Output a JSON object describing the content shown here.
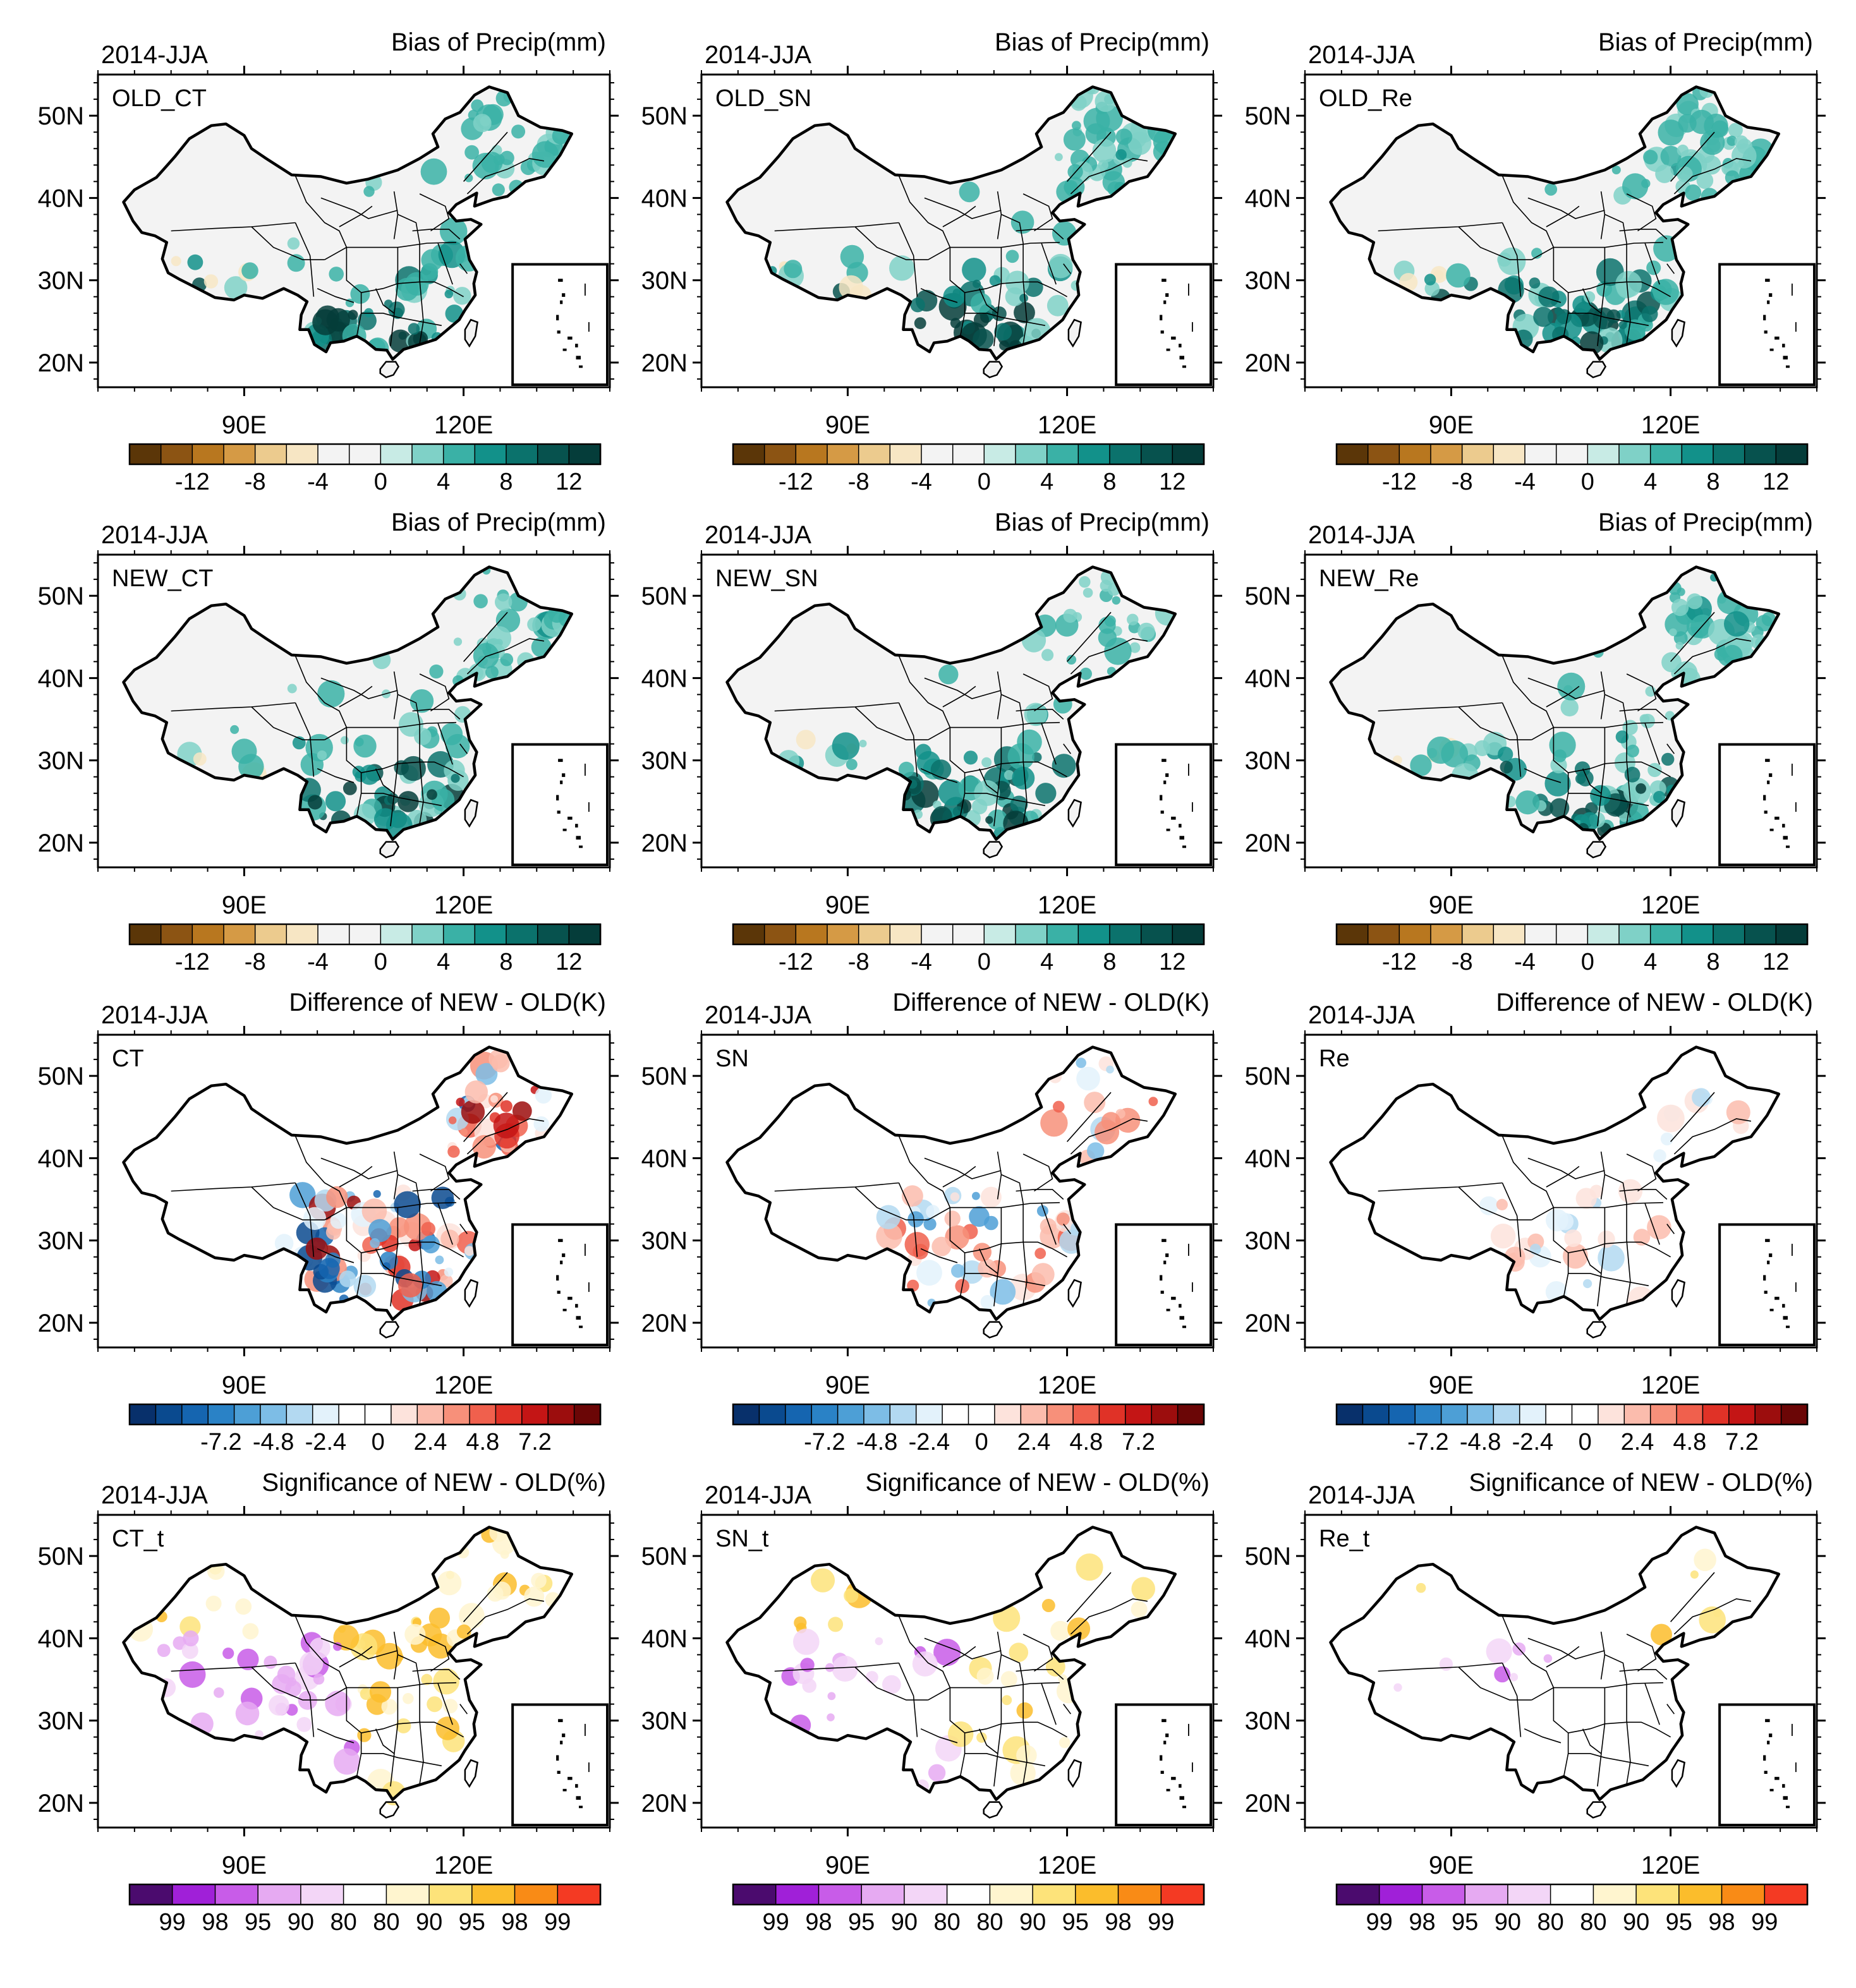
{
  "figure": {
    "rows": [
      {
        "id": "old-bias",
        "season": "2014-JJA",
        "title": "Bias of Precip(mm)",
        "palette": [
          "#5b3608",
          "#8c5413",
          "#b8771f",
          "#d59a45",
          "#eccb8e",
          "#f7e6c4",
          "#f3f3f3",
          "#f3f3f3",
          "#c8ebe5",
          "#7fd1c7",
          "#3ab1a6",
          "#12918a",
          "#0b726c",
          "#07524e",
          "#053d3a"
        ],
        "boundary_labels": [
          "-12",
          "-8",
          "-4",
          "0",
          "4",
          "8",
          "12"
        ],
        "panels": [
          {
            "label": "OLD_CT",
            "mask": [
              0.35,
              0.5,
              0.25
            ],
            "wet": "south"
          },
          {
            "label": "OLD_SN",
            "mask": [
              0.3,
              0.45,
              0.2
            ],
            "wet": "south"
          },
          {
            "label": "OLD_Re",
            "mask": [
              0.5,
              0.6,
              0.4
            ],
            "wet": "south"
          }
        ]
      },
      {
        "id": "new-bias",
        "season": "2014-JJA",
        "title": "Bias of Precip(mm)",
        "palette": [
          "#5b3608",
          "#8c5413",
          "#b8771f",
          "#d59a45",
          "#eccb8e",
          "#f7e6c4",
          "#f3f3f3",
          "#f3f3f3",
          "#c8ebe5",
          "#7fd1c7",
          "#3ab1a6",
          "#12918a",
          "#0b726c",
          "#07524e",
          "#053d3a"
        ],
        "boundary_labels": [
          "-12",
          "-8",
          "-4",
          "0",
          "4",
          "8",
          "12"
        ],
        "panels": [
          {
            "label": "NEW_CT",
            "mask": [
              0.4,
              0.55,
              0.3
            ],
            "wet": "south"
          },
          {
            "label": "NEW_SN",
            "mask": [
              0.3,
              0.45,
              0.2
            ],
            "wet": "south"
          },
          {
            "label": "NEW_Re",
            "mask": [
              0.5,
              0.6,
              0.4
            ],
            "wet": "south"
          }
        ]
      },
      {
        "id": "difference",
        "season": "2014-JJA",
        "title": "Difference of NEW - OLD(K)",
        "palette": [
          "#08306b",
          "#0a4a8f",
          "#1565b0",
          "#2a82c6",
          "#4d9fd6",
          "#7dbde6",
          "#b3d9f1",
          "#e3f2fb",
          "#ffffff",
          "#ffffff",
          "#fde3dc",
          "#fbbcad",
          "#f7907a",
          "#f0604d",
          "#e03227",
          "#c41515",
          "#9c0d0d",
          "#6b0606"
        ],
        "boundary_labels": [
          "-7.2",
          "-4.8",
          "-2.4",
          "0",
          "2.4",
          "4.8",
          "7.2"
        ],
        "panels": [
          {
            "label": "CT",
            "mask": [
              0.6,
              0.5,
              0.7
            ],
            "wet": "mixed"
          },
          {
            "label": "SN",
            "mask": [
              0.4,
              0.3,
              0.5
            ],
            "wet": "mixed"
          },
          {
            "label": "Re",
            "mask": [
              0.2,
              0.15,
              0.25
            ],
            "wet": "mixed"
          }
        ]
      },
      {
        "id": "significance",
        "season": "2014-JJA",
        "title": "Significance of NEW - OLD(%)",
        "palette": [
          "#4b0b6e",
          "#a020d8",
          "#c85ce8",
          "#e6aaf2",
          "#f3d6f7",
          "#ffffff",
          "#fff5cf",
          "#fde37a",
          "#fbbd2c",
          "#f98b16",
          "#f43a23"
        ],
        "boundary_labels": [
          "99",
          "98",
          "95",
          "90",
          "80",
          "80",
          "90",
          "95",
          "98",
          "99"
        ],
        "panels": [
          {
            "label": "CT_t",
            "mask": [
              0.25,
              0.2,
              0.3
            ],
            "wet": "sig"
          },
          {
            "label": "SN_t",
            "mask": [
              0.12,
              0.1,
              0.15
            ],
            "wet": "sig"
          },
          {
            "label": "Re_t",
            "mask": [
              0.04,
              0.03,
              0.05
            ],
            "wet": "sig"
          }
        ]
      }
    ]
  },
  "chart_data": [
    {
      "type": "heatmap",
      "description": "map panels of China, precipitation bias and differences, 4 rows x 3 columns",
      "season": "2014-JJA",
      "x_ticks": [
        "90E",
        "120E"
      ],
      "y_ticks": [
        "20N",
        "30N",
        "40N",
        "50N"
      ],
      "xlim": [
        70,
        140
      ],
      "ylim": [
        17,
        55
      ],
      "panels": [
        "OLD_CT",
        "OLD_SN",
        "OLD_Re",
        "NEW_CT",
        "NEW_SN",
        "NEW_Re",
        "CT",
        "SN",
        "Re",
        "CT_t",
        "SN_t",
        "Re_t"
      ],
      "colorbars": {
        "bias": {
          "title": "Bias of Precip(mm)",
          "ticks": [
            -12,
            -8,
            -4,
            0,
            4,
            8,
            12
          ]
        },
        "difference": {
          "title": "Difference of NEW - OLD(K)",
          "ticks": [
            -7.2,
            -4.8,
            -2.4,
            0,
            2.4,
            4.8,
            7.2
          ]
        },
        "significance": {
          "title": "Significance of NEW - OLD(%)",
          "ticks": [
            "99",
            "98",
            "95",
            "90",
            "80",
            "80",
            "90",
            "95",
            "98",
            "99"
          ]
        }
      }
    }
  ],
  "axes": {
    "x_ticks": [
      {
        "label": "90E",
        "lon": 90
      },
      {
        "label": "120E",
        "lon": 120
      }
    ],
    "y_ticks": [
      {
        "label": "20N",
        "lat": 20
      },
      {
        "label": "30N",
        "lat": 30
      },
      {
        "label": "40N",
        "lat": 40
      },
      {
        "label": "50N",
        "lat": 50
      }
    ],
    "lon_range": [
      70,
      140
    ],
    "lat_range": [
      17,
      55
    ]
  }
}
